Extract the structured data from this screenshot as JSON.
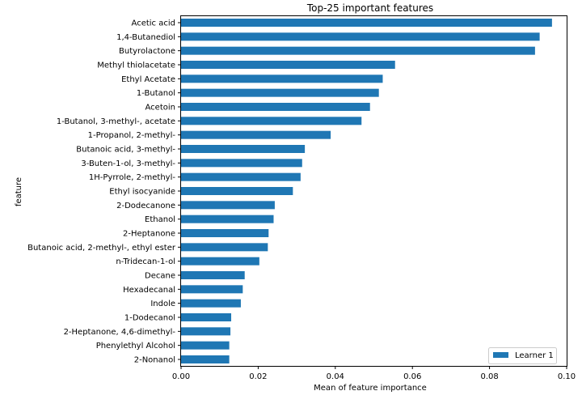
{
  "chart_data": {
    "type": "bar",
    "orientation": "horizontal",
    "title": "Top-25 important features",
    "xlabel": "Mean of feature importance",
    "ylabel": "feature",
    "xlim": [
      0,
      0.1
    ],
    "xticks": [
      "0.00",
      "0.02",
      "0.04",
      "0.06",
      "0.08",
      "0.10"
    ],
    "legend_position": "lower-right",
    "grid": false,
    "categories": [
      "Acetic acid",
      "1,4-Butanediol",
      "Butyrolactone",
      "Methyl thiolacetate",
      "Ethyl Acetate",
      "1-Butanol",
      "Acetoin",
      "1-Butanol, 3-methyl-, acetate",
      "1-Propanol, 2-methyl-",
      "Butanoic acid, 3-methyl-",
      "3-Buten-1-ol, 3-methyl-",
      "1H-Pyrrole, 2-methyl-",
      "Ethyl isocyanide",
      "2-Dodecanone",
      "Ethanol",
      "2-Heptanone",
      "Butanoic acid, 2-methyl-, ethyl ester",
      "n-Tridecan-1-ol",
      "Decane",
      "Hexadecanal",
      "Indole",
      "1-Dodecanol",
      "2-Heptanone, 4,6-dimethyl-",
      "Phenylethyl Alcohol",
      "2-Nonanol"
    ],
    "series": [
      {
        "name": "Learner 1",
        "color": "#1f77b4",
        "values": [
          0.0962,
          0.093,
          0.0918,
          0.0555,
          0.0523,
          0.0513,
          0.049,
          0.0468,
          0.0388,
          0.0321,
          0.0314,
          0.031,
          0.029,
          0.0243,
          0.024,
          0.0227,
          0.0225,
          0.0203,
          0.0165,
          0.016,
          0.0155,
          0.013,
          0.0128,
          0.0125,
          0.0125
        ]
      }
    ]
  }
}
